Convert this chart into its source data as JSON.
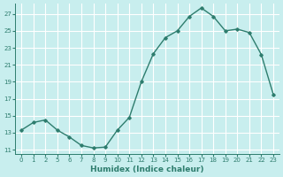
{
  "x_labels": [
    "0",
    "1",
    "2",
    "5",
    "6",
    "7",
    "8",
    "9",
    "10",
    "11",
    "12",
    "13",
    "14",
    "15",
    "16",
    "17",
    "18",
    "19",
    "20",
    "21",
    "22",
    "23"
  ],
  "y": [
    13.3,
    14.2,
    14.5,
    13.3,
    12.5,
    11.5,
    11.2,
    11.3,
    13.3,
    14.8,
    19.0,
    22.3,
    24.2,
    25.0,
    26.7,
    27.7,
    26.7,
    25.0,
    25.2,
    24.8,
    22.2,
    17.5
  ],
  "xlabel": "Humidex (Indice chaleur)",
  "ylim": [
    10.5,
    28.2
  ],
  "yticks": [
    11,
    13,
    15,
    17,
    19,
    21,
    23,
    25,
    27
  ],
  "line_color": "#2e7d6e",
  "marker": "D",
  "marker_size": 1.8,
  "bg_color": "#c8eeee",
  "grid_color": "#ffffff",
  "tick_color": "#2e7d6e",
  "label_color": "#2e7d6e",
  "linewidth": 1.0
}
